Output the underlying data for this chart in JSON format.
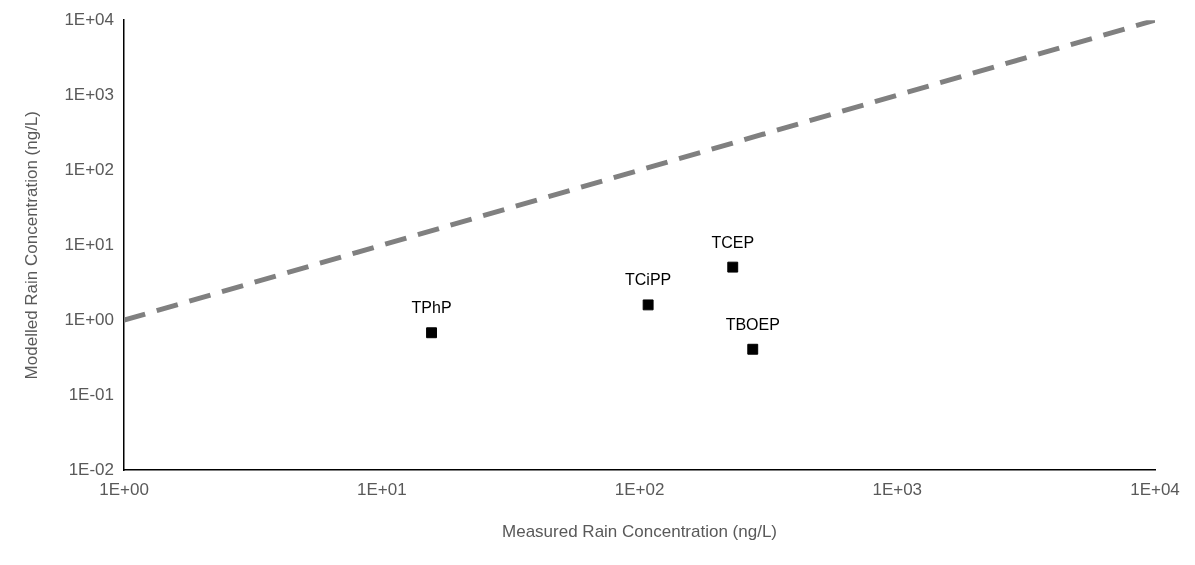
{
  "chart_data": {
    "type": "scatter",
    "xlabel": "Measured Rain Concentration (ng/L)",
    "ylabel": "Modelled Rain Concentration (ng/L)",
    "log": "xy",
    "grid": false,
    "legend": false,
    "marker": "square",
    "xlim": [
      1,
      10000
    ],
    "ylim": [
      0.01,
      10000
    ],
    "xticks": [
      {
        "value": 1,
        "label": "1E+00"
      },
      {
        "value": 10,
        "label": "1E+01"
      },
      {
        "value": 100,
        "label": "1E+02"
      },
      {
        "value": 1000,
        "label": "1E+03"
      },
      {
        "value": 10000,
        "label": "1E+04"
      }
    ],
    "yticks": [
      {
        "value": 0.01,
        "label": "1E-02"
      },
      {
        "value": 0.1,
        "label": "1E-01"
      },
      {
        "value": 1,
        "label": "1E+00"
      },
      {
        "value": 10,
        "label": "1E+01"
      },
      {
        "value": 100,
        "label": "1E+02"
      },
      {
        "value": 1000,
        "label": "1E+03"
      },
      {
        "value": 10000,
        "label": "1E+04"
      }
    ],
    "series": [
      {
        "type": "scatter",
        "color": "#000000",
        "x": [
          15.6,
          108,
          230,
          275
        ],
        "values": [
          0.68,
          1.6,
          5.1,
          0.41
        ]
      },
      {
        "type": "line",
        "color": "#808080",
        "line_style": "dashed",
        "marker": "none",
        "x": [
          1,
          10000
        ],
        "values": [
          1,
          10000
        ]
      }
    ],
    "annotations": [
      {
        "text": "TPhP",
        "x": 15.6,
        "y": 0.68
      },
      {
        "text": "TCiPP",
        "x": 108,
        "y": 1.6
      },
      {
        "text": "TCEP",
        "x": 230,
        "y": 5.1
      },
      {
        "text": "TBOEP",
        "x": 275,
        "y": 0.41
      }
    ]
  }
}
